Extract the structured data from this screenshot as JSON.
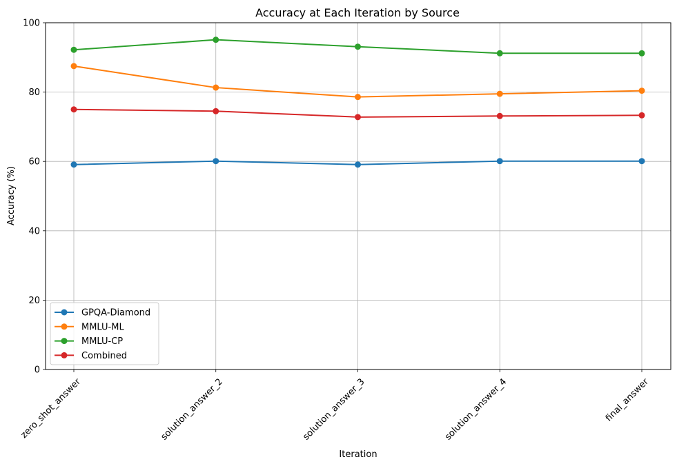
{
  "chart_data": {
    "type": "line",
    "title": "Accuracy at Each Iteration by Source",
    "xlabel": "Iteration",
    "ylabel": "Accuracy (%)",
    "categories": [
      "zero_shot_answer",
      "solution_answer_2",
      "solution_answer_3",
      "solution_answer_4",
      "final_answer"
    ],
    "ylim": [
      0,
      100
    ],
    "yticks": [
      "0",
      "20",
      "40",
      "60",
      "80",
      "100"
    ],
    "grid": true,
    "legend_position": "lower-left",
    "series": [
      {
        "name": "GPQA-Diamond",
        "color": "#1f77b4",
        "values": [
          59.1,
          60.1,
          59.1,
          60.1,
          60.1
        ]
      },
      {
        "name": "MMLU-ML",
        "color": "#ff7f0e",
        "values": [
          87.5,
          81.3,
          78.6,
          79.5,
          80.4
        ]
      },
      {
        "name": "MMLU-CP",
        "color": "#2ca02c",
        "values": [
          92.2,
          95.1,
          93.1,
          91.2,
          91.2
        ]
      },
      {
        "name": "Combined",
        "color": "#d62728",
        "values": [
          75.0,
          74.5,
          72.8,
          73.1,
          73.3
        ]
      }
    ]
  }
}
